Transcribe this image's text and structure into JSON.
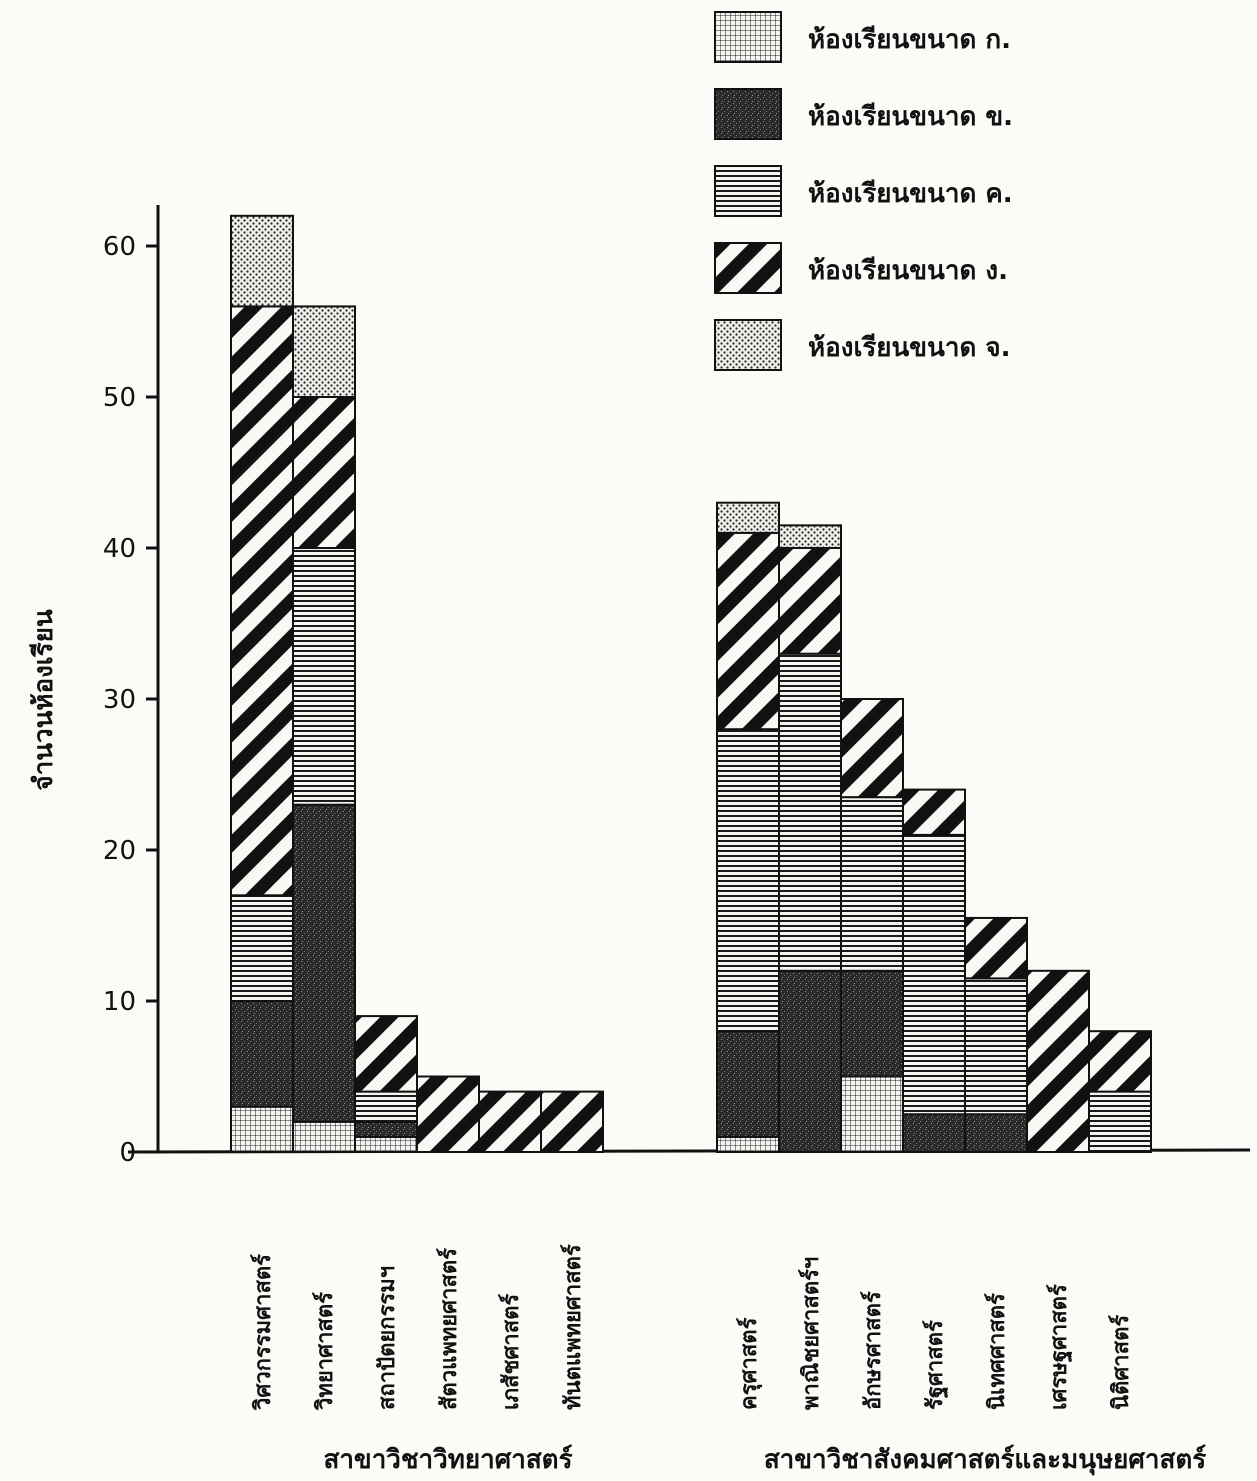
{
  "chart_data": {
    "type": "bar",
    "stacked": true,
    "ylabel": "จำนวนห้องเรียน",
    "ylim": [
      0,
      62
    ],
    "yticks": [
      0,
      10,
      20,
      30,
      40,
      50,
      60
    ],
    "legend_position": "top-right",
    "series": [
      {
        "name": "ห้องเรียนขนาด ก.",
        "pattern": "fine-grid"
      },
      {
        "name": "ห้องเรียนขนาด ข.",
        "pattern": "dark-speckle"
      },
      {
        "name": "ห้องเรียนขนาด ค.",
        "pattern": "horizontal-lines"
      },
      {
        "name": "ห้องเรียนขนาด ง.",
        "pattern": "diagonal-stripes"
      },
      {
        "name": "ห้องเรียนขนาด จ.",
        "pattern": "dots"
      }
    ],
    "groups": [
      {
        "label": "สาขาวิชาวิทยาศาสตร์",
        "categories": [
          {
            "name": "วิศวกรรมศาสตร์",
            "values": [
              3,
              7,
              7,
              39,
              6
            ]
          },
          {
            "name": "วิทยาศาสตร์",
            "values": [
              2,
              21,
              17,
              10,
              6
            ]
          },
          {
            "name": "สถาปัตยกรรมฯ",
            "values": [
              1,
              1,
              2,
              5,
              0
            ]
          },
          {
            "name": "สัตวแพทยศาสตร์",
            "values": [
              0,
              0,
              0,
              5,
              0
            ]
          },
          {
            "name": "เภสัชศาสตร์",
            "values": [
              0,
              0,
              0,
              4,
              0
            ]
          },
          {
            "name": "ทันตแพทยศาสตร์",
            "values": [
              0,
              0,
              0,
              4,
              0
            ]
          }
        ]
      },
      {
        "label": "สาขาวิชาสังคมศาสตร์และมนุษยศาสตร์",
        "categories": [
          {
            "name": "ครุศาสตร์",
            "values": [
              1,
              7,
              20,
              13,
              2
            ]
          },
          {
            "name": "พาณิชยศาสตร์ฯ",
            "values": [
              0,
              12,
              21,
              7,
              1.5
            ]
          },
          {
            "name": "อักษรศาสตร์",
            "values": [
              5,
              7,
              11.5,
              6.5,
              0
            ]
          },
          {
            "name": "รัฐศาสตร์",
            "values": [
              0,
              2.5,
              18.5,
              3,
              0
            ]
          },
          {
            "name": "นิเทศศาสตร์",
            "values": [
              0,
              2.5,
              9,
              4,
              0
            ]
          },
          {
            "name": "เศรษฐศาสตร์",
            "values": [
              0,
              0,
              0,
              12,
              0
            ]
          },
          {
            "name": "นิติศาสตร์",
            "values": [
              0,
              0,
              4,
              4,
              0
            ]
          }
        ]
      }
    ]
  }
}
